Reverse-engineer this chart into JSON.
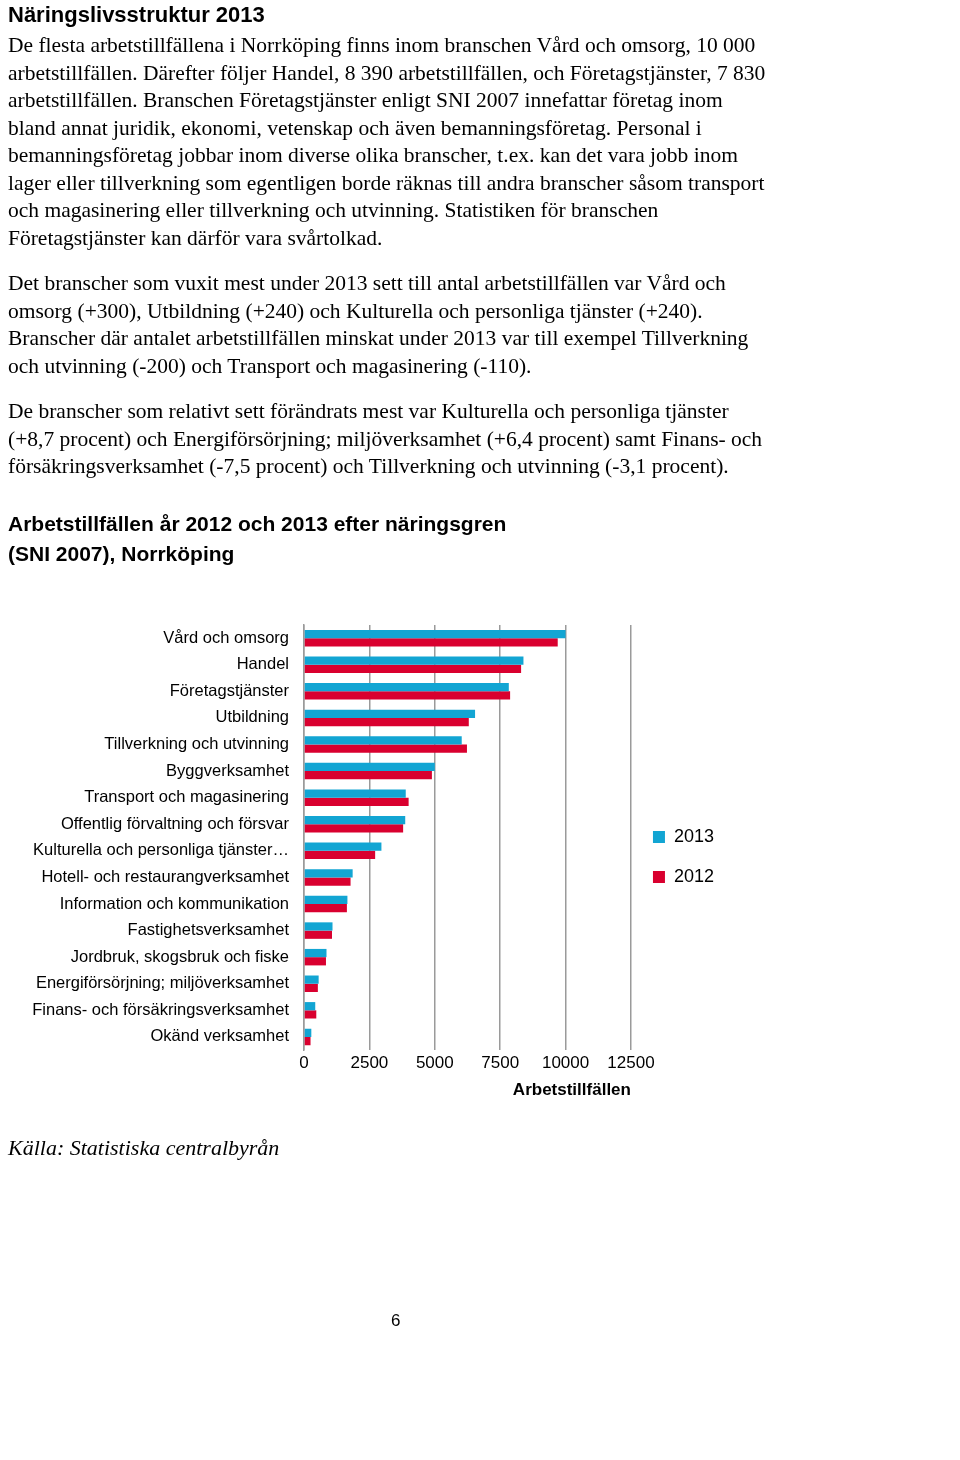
{
  "chart_data": {
    "type": "bar",
    "orientation": "horizontal",
    "title": "Arbetstillfällen år 2012 och 2013 efter näringsgren (SNI 2007), Norrköping",
    "xlabel": "Arbetstillfällen",
    "categories": [
      "Vård och omsorg",
      "Handel",
      "Företagstjänster",
      "Utbildning",
      "Tillverkning och utvinning",
      "Byggverksamhet",
      "Transport och magasinering",
      "Offentlig förvaltning och försvar",
      "Kulturella och personliga tjänster…",
      "Hotell- och restaurangverksamhet",
      "Information och kommunikation",
      "Fastighetsverksamhet",
      "Jordbruk, skogsbruk och fiske",
      "Energiförsörjning; miljöverksamhet",
      "Finans- och försäkringsverksamhet",
      "Okänd verksamhet"
    ],
    "series": [
      {
        "name": "2013",
        "color": "#12a5d3",
        "values": [
          10000,
          8390,
          7830,
          6540,
          6030,
          5000,
          3890,
          3870,
          2960,
          1860,
          1660,
          1090,
          860,
          560,
          430,
          280
        ]
      },
      {
        "name": "2012",
        "color": "#d9002f",
        "values": [
          9700,
          8300,
          7880,
          6300,
          6230,
          4890,
          4000,
          3790,
          2720,
          1780,
          1640,
          1070,
          840,
          530,
          470,
          250
        ]
      }
    ],
    "xlim": [
      0,
      12500
    ],
    "xticks": [
      0,
      2500,
      5000,
      7500,
      10000,
      12500
    ],
    "grid": "x",
    "legend": "right",
    "annotations": [
      "Näringslivsstruktur 2013",
      "De flesta arbetstillfällena i Norrköping finns inom branschen Vård och omsorg, 10 000 arbetstillfällen. Därefter följer Handel, 8 390 arbetstillfällen, och Företagstjänster, 7 830 arbetstillfällen. Branschen Företagstjänster enligt SNI 2007 innefattar företag inom bland annat juridik, ekonomi, vetenskap och även bemanningsföretag. Personal i bemanningsföretag jobbar inom diverse olika branscher, t.ex. kan det vara jobb inom lager eller tillverkning som egentligen borde räknas till andra branscher såsom transport och magasinering eller tillverkning och utvinning. Statistiken för branschen Företagstjänster kan därför vara svårtolkad.",
      "Det branscher som vuxit mest under 2013 sett till antal arbetstillfällen var Vård och omsorg (+300), Utbildning (+240) och Kulturella och personliga tjänster (+240). Branscher där antalet arbetstillfällen minskat under 2013 var till exempel Tillverkning och utvinning (-200) och Transport och magasinering (-110).",
      "De branscher som relativt sett förändrats mest var Kulturella och personliga tjänster (+8,7 procent) och Energiförsörjning; miljöverksamhet (+6,4 procent) samt Finans- och försäkringsverksamhet (-7,5 procent) och Tillverkning och utvinning (-3,1 procent).",
      "Källa: Statistiska centralbyrån",
      "6"
    ]
  }
}
